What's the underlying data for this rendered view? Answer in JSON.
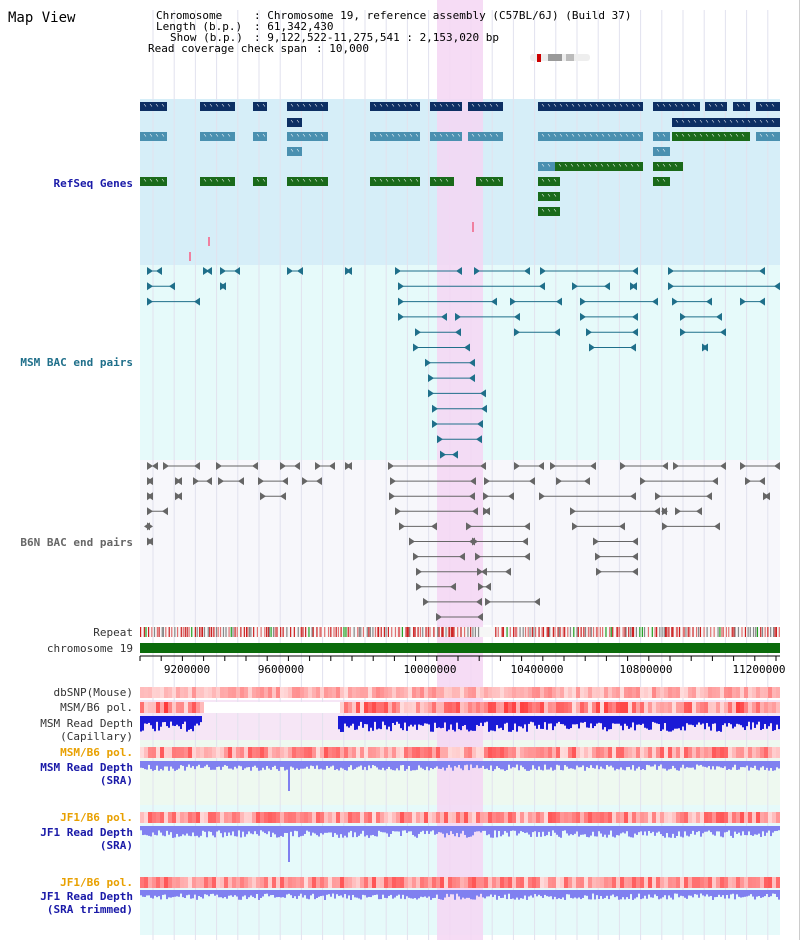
{
  "title": "Map View",
  "info": {
    "chromosome_key": "Chromosome",
    "chromosome_val": ": Chromosome 19, reference assembly (C57BL/6J) (Build 37)",
    "length_key": "Length (b.p.)",
    "length_val": ": 61,342,430",
    "show_key": "Show (b.p.)",
    "show_val": ": 9,122,522-11,275,541 : 2,153,020 bp",
    "span_key": "Read coverage check span",
    "span_val": ": 10,000"
  },
  "tracks": {
    "refseq": "RefSeq Genes",
    "msm_bac": "MSM BAC end pairs",
    "b6n_bac": "B6N BAC end pairs",
    "repeat": "Repeat",
    "chromosome": "chromosome 19",
    "dbsnp": "dbSNP(Mouse)",
    "msm_b6_pol_1": "MSM/B6 pol.",
    "msm_read_depth_cap_1": "MSM Read Depth",
    "msm_read_depth_cap_2": "(Capillary)",
    "msm_b6_pol_2": "MSM/B6 pol.",
    "msm_read_depth_sra_1": "MSM Read Depth",
    "msm_read_depth_sra_2": "(SRA)",
    "jf1_b6_pol_1": "JF1/B6 pol.",
    "jf1_read_depth_sra_1": "JF1 Read Depth",
    "jf1_read_depth_sra_2": "(SRA)",
    "jf1_b6_pol_2": "JF1/B6 pol.",
    "jf1_read_depth_trim_1": "JF1 Read Depth",
    "jf1_read_depth_trim_2": "(SRA trimmed)"
  },
  "axis": {
    "ticks": [
      "9200000",
      "9600000",
      "10000000",
      "10400000",
      "10800000",
      "11200000"
    ]
  },
  "colors": {
    "refseq_bg": "#d6eef8",
    "msm_bg": "#e6fafa",
    "b6n_bg": "#f7f7fb",
    "highlight": "#f5d6f3",
    "gene_navy": "#0d2f63",
    "gene_teal": "#4a90b0",
    "gene_green": "#1a6a1a",
    "msm_line": "#1f6f8a",
    "b6n_line": "#666666",
    "chrom_bar": "#0b6b0b",
    "depth_blue": "#1a1ad6",
    "depth_light": "#8080f0",
    "pol_red": "#e86060",
    "label_blue": "#1a1aa8",
    "label_teal": "#1f6f8a",
    "label_orange": "#e8a000"
  }
}
